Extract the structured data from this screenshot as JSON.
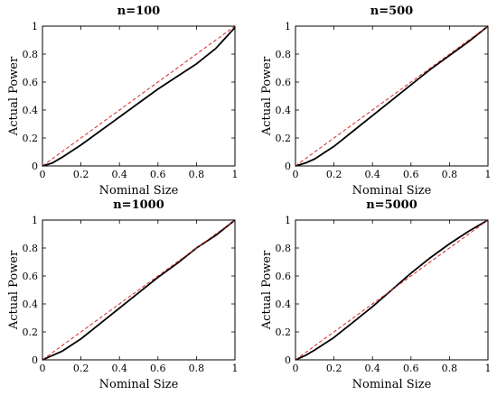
{
  "chart_data": [
    {
      "type": "line",
      "title": "n=100",
      "xlabel": "Nominal Size",
      "ylabel": "Actual Power",
      "xlim": [
        0,
        1
      ],
      "ylim": [
        0,
        1
      ],
      "xticks": [
        "0",
        "0.2",
        "0.4",
        "0.6",
        "0.8",
        "1"
      ],
      "yticks": [
        "0",
        "0.2",
        "0.4",
        "0.6",
        "0.8",
        "1"
      ],
      "grid": false,
      "series": [
        {
          "style": "solid",
          "color": "#000000",
          "x": [
            0,
            0.05,
            0.1,
            0.2,
            0.3,
            0.4,
            0.5,
            0.6,
            0.7,
            0.8,
            0.9,
            1.0
          ],
          "y": [
            0,
            0.02,
            0.06,
            0.15,
            0.25,
            0.35,
            0.45,
            0.55,
            0.64,
            0.73,
            0.84,
            0.99
          ]
        },
        {
          "style": "dashed",
          "color": "#d62728",
          "x": [
            0,
            1
          ],
          "y": [
            0,
            1
          ]
        }
      ]
    },
    {
      "type": "line",
      "title": "n=500",
      "xlabel": "Nominal Size",
      "ylabel": "Actual Power",
      "xlim": [
        0,
        1
      ],
      "ylim": [
        0,
        1
      ],
      "xticks": [
        "0",
        "0.2",
        "0.4",
        "0.6",
        "0.8",
        "1"
      ],
      "yticks": [
        "0",
        "0.2",
        "0.4",
        "0.6",
        "0.8",
        "1"
      ],
      "grid": false,
      "series": [
        {
          "style": "solid",
          "color": "#000000",
          "x": [
            0,
            0.05,
            0.1,
            0.2,
            0.3,
            0.4,
            0.5,
            0.6,
            0.7,
            0.8,
            0.9,
            1.0
          ],
          "y": [
            0,
            0.02,
            0.05,
            0.14,
            0.25,
            0.36,
            0.47,
            0.58,
            0.69,
            0.79,
            0.89,
            1.0
          ]
        },
        {
          "style": "dashed",
          "color": "#d62728",
          "x": [
            0,
            1
          ],
          "y": [
            0,
            1
          ]
        }
      ]
    },
    {
      "type": "line",
      "title": "n=1000",
      "xlabel": "Nominal Size",
      "ylabel": "Actual Power",
      "xlim": [
        0,
        1
      ],
      "ylim": [
        0,
        1
      ],
      "xticks": [
        "0",
        "0.2",
        "0.4",
        "0.6",
        "0.8",
        "1"
      ],
      "yticks": [
        "0",
        "0.2",
        "0.4",
        "0.6",
        "0.8",
        "1"
      ],
      "grid": false,
      "series": [
        {
          "style": "solid",
          "color": "#000000",
          "x": [
            0,
            0.05,
            0.1,
            0.2,
            0.3,
            0.4,
            0.5,
            0.6,
            0.7,
            0.8,
            0.9,
            1.0
          ],
          "y": [
            0,
            0.03,
            0.06,
            0.15,
            0.26,
            0.37,
            0.48,
            0.59,
            0.69,
            0.8,
            0.89,
            1.0
          ]
        },
        {
          "style": "dashed",
          "color": "#d62728",
          "x": [
            0,
            1
          ],
          "y": [
            0,
            1
          ]
        }
      ]
    },
    {
      "type": "line",
      "title": "n=5000",
      "xlabel": "Nominal Size",
      "ylabel": "Actual Power",
      "xlim": [
        0,
        1
      ],
      "ylim": [
        0,
        1
      ],
      "xticks": [
        "0",
        "0.2",
        "0.4",
        "0.6",
        "0.8",
        "1"
      ],
      "yticks": [
        "0",
        "0.2",
        "0.4",
        "0.6",
        "0.8",
        "1"
      ],
      "grid": false,
      "series": [
        {
          "style": "solid",
          "color": "#000000",
          "x": [
            0,
            0.05,
            0.1,
            0.2,
            0.3,
            0.4,
            0.5,
            0.6,
            0.7,
            0.8,
            0.9,
            1.0
          ],
          "y": [
            0,
            0.03,
            0.07,
            0.16,
            0.27,
            0.38,
            0.5,
            0.62,
            0.73,
            0.83,
            0.92,
            1.0
          ]
        },
        {
          "style": "dashed",
          "color": "#d62728",
          "x": [
            0,
            1
          ],
          "y": [
            0,
            1
          ]
        }
      ]
    }
  ]
}
